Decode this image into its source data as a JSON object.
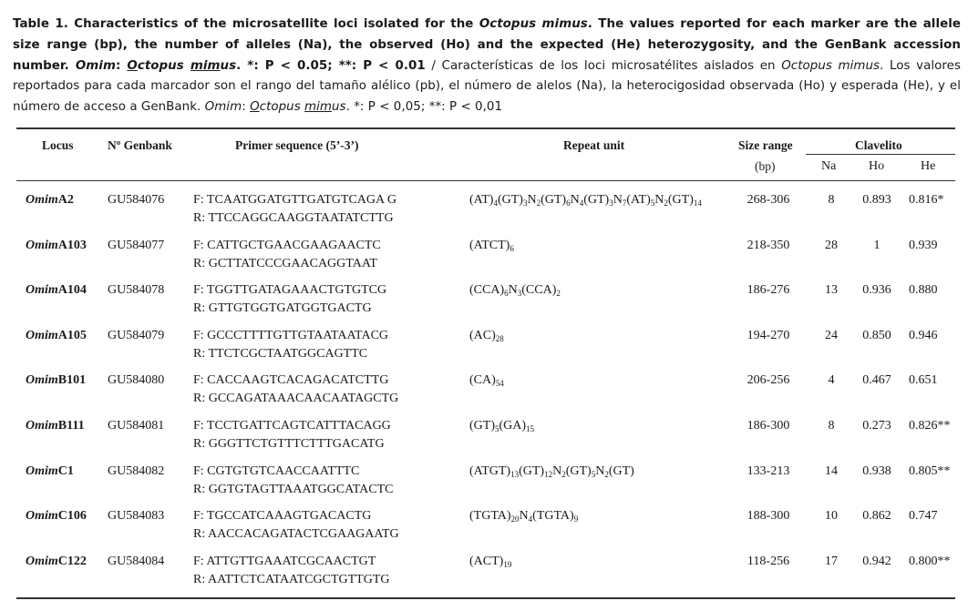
{
  "caption": {
    "bold_part1": "Table 1. Characteristics of the microsatellite loci isolated for the ",
    "bold_italic_species": "Octopus mimus",
    "bold_part2": ". The values reported for each marker are the allele size range (bp), the number of alleles (Na), the observed (Ho) and the expected (He) heterozygosity, and the GenBank accession number. ",
    "bold_italic_omim": "Omim",
    "bold_colon": ": ",
    "bold_italic_u1": "O",
    "bold_italic_species_rest": "ctopus ",
    "bold_italic_u2": "mim",
    "bold_italic_species_end": "us",
    "bold_p_note": ". *: P < 0.05; **: P < 0.01",
    "spanish_part1": " / Características  de los loci microsatélites aislados en ",
    "spanish_italic_species": "Octopus mimus",
    "spanish_part2": ". Los valores reportados para cada marcador son el rango del tamaño alélico (pb), el número de alelos (Na), la heterocigosidad observada (Ho) y esperada (He), y el número de acceso a GenBank. ",
    "spanish_italic_omim": "Omim",
    "spanish_colon": ": ",
    "spanish_italic_u1": "O",
    "spanish_italic_rest": "ctopus ",
    "spanish_italic_u2": "mim",
    "spanish_italic_end": "us",
    "spanish_p_note": ". *: P < 0,05; **: P < 0,01"
  },
  "headers": {
    "locus": "Locus",
    "genbank": "Nº Genbank",
    "primer": "Primer sequence (5’-3’)",
    "repeat": "Repeat unit",
    "size_range": "Size range",
    "bp": "(bp)",
    "group": "Clavelito",
    "na": "Na",
    "ho": "Ho",
    "he": "He"
  },
  "rows": [
    {
      "loc_prefix": "Omim",
      "loc_suffix": "A2",
      "genbank": "GU584076",
      "fwd": "F: TCAATGGATGTTGATGTCAGA G",
      "rev": "R: TTCCAGGCAAGGTAATATCTTG",
      "repeat_html": "(AT)<sub>4</sub>(GT)<sub>3</sub>N<sub>2</sub>(GT)<sub>6</sub>N<sub>4</sub>(GT)<sub>3</sub>N<sub>7</sub>(AT)<sub>5</sub>N<sub>2</sub>(GT)<sub>14</sub>",
      "size": "268-306",
      "na": "8",
      "ho": "0.893",
      "he": "0.816*"
    },
    {
      "loc_prefix": "Omim",
      "loc_suffix": "A103",
      "genbank": "GU584077",
      "fwd": "F: CATTGCTGAACGAAGAACTC",
      "rev": "R: GCTTATCCCGAACAGGTAAT",
      "repeat_html": "(ATCT)<sub>6</sub>",
      "size": "218-350",
      "na": "28",
      "ho": "1",
      "he": "0.939"
    },
    {
      "loc_prefix": "Omim",
      "loc_suffix": "A104",
      "genbank": "GU584078",
      "fwd": "F: TGGTTGATAGAAACTGTGTCG",
      "rev": "R: GTTGTGGTGATGGTGACTG",
      "repeat_html": "(CCA)<sub>6</sub>N<sub>3</sub>(CCA)<sub>2</sub>",
      "size": "186-276",
      "na": "13",
      "ho": "0.936",
      "he": "0.880"
    },
    {
      "loc_prefix": "Omim",
      "loc_suffix": "A105",
      "genbank": "GU584079",
      "fwd": "F: GCCCTTTTGTTGTAATAATACG",
      "rev": "R: TTCTCGCTAATGGCAGTTC",
      "repeat_html": "(AC)<sub>28</sub>",
      "size": "194-270",
      "na": "24",
      "ho": "0.850",
      "he": "0.946"
    },
    {
      "loc_prefix": "Omim",
      "loc_suffix": "B101",
      "genbank": "GU584080",
      "fwd": "F: CACCAAGTCACAGACATCTTG",
      "rev": "R: GCCAGATAAACAACAATAGCTG",
      "repeat_html": "(CA)<sub>54</sub>",
      "size": "206-256",
      "na": "4",
      "ho": "0.467",
      "he": "0.651"
    },
    {
      "loc_prefix": "Omim",
      "loc_suffix": "B111",
      "genbank": "GU584081",
      "fwd": "F: TCCTGATTCAGTCATTTACAGG",
      "rev": "R: GGGTTCTGTTTCTTTGACATG",
      "repeat_html": "(GT)<sub>5</sub>(GA)<sub>15</sub>",
      "size": "186-300",
      "na": "8",
      "ho": "0.273",
      "he": "0.826**"
    },
    {
      "loc_prefix": "Omim",
      "loc_suffix": "C1",
      "genbank": "GU584082",
      "fwd": "F: CGTGTGTCAACCAATTTC",
      "rev": "R: GGTGTAGTTAAATGGCATACTC",
      "repeat_html": "(ATGT)<sub>13</sub>(GT)<sub>12</sub>N<sub>2</sub>(GT)<sub>5</sub>N<sub>2</sub>(GT)",
      "size": "133-213",
      "na": "14",
      "ho": "0.938",
      "he": "0.805**"
    },
    {
      "loc_prefix": "Omim",
      "loc_suffix": "C106",
      "genbank": "GU584083",
      "fwd": "F: TGCCATCAAAGTGACACTG",
      "rev": "R: AACCACAGATACTCGAAGAATG",
      "repeat_html": "(TGTA)<sub>20</sub>N<sub>4</sub>(TGTA)<sub>9</sub>",
      "size": "188-300",
      "na": "10",
      "ho": "0.862",
      "he": "0.747"
    },
    {
      "loc_prefix": "Omim",
      "loc_suffix": "C122",
      "genbank": "GU584084",
      "fwd": "F: ATTGTTGAAATCGCAACTGT",
      "rev": "R: AATTCTCATAATCGCTGTTGTG",
      "repeat_html": "(ACT)<sub>19</sub>",
      "size": "118-256",
      "na": "17",
      "ho": "0.942",
      "he": "0.800**"
    }
  ]
}
